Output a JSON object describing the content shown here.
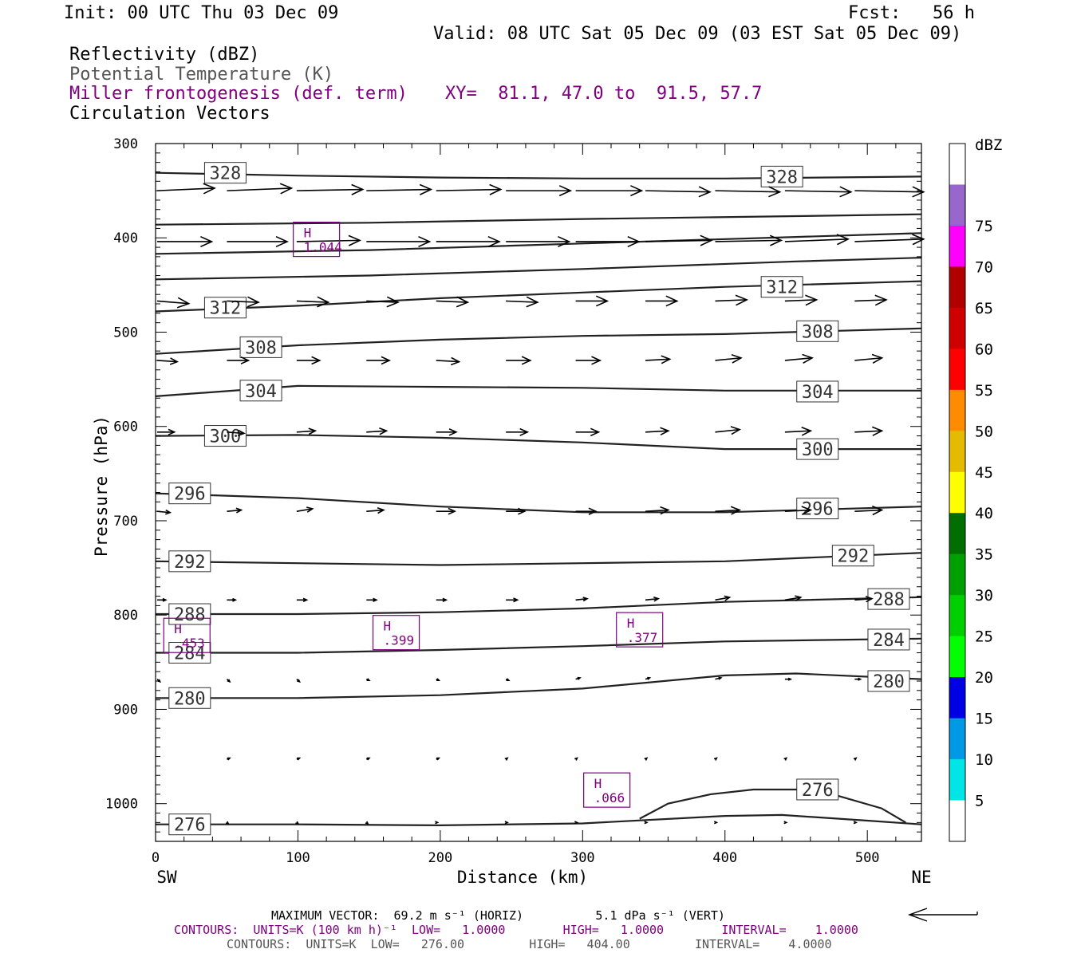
{
  "header": {
    "init": "Init: 00 UTC Thu 03 Dec 09",
    "fcst": "Fcst:   56 h",
    "valid": "Valid: 08 UTC Sat 05 Dec 09 (03 EST Sat 05 Dec 09)"
  },
  "fields": {
    "reflectivity": "Reflectivity (dBZ)",
    "theta": "Potential Temperature (K)",
    "frontogenesis": "Miller frontogenesis (def. term)",
    "xy": "XY=  81.1, 47.0 to  91.5, 57.7",
    "vectors": "Circulation Vectors"
  },
  "footer": {
    "max_vector": "MAXIMUM VECTOR:  69.2 m s⁻¹ (HORIZ)          5.1 dPa s⁻¹ (VERT)",
    "contours1": "CONTOURS:  UNITS=K (100 km h)⁻¹  LOW=   1.0000        HIGH=   1.0000        INTERVAL=    1.0000",
    "contours2": "CONTOURS:  UNITS=K  LOW=   276.00         HIGH=   404.00         INTERVAL=    4.0000"
  },
  "colors": {
    "contour": "#222222",
    "purple": "#800080",
    "background": "#ffffff"
  },
  "chart_data": {
    "type": "cross-section",
    "xlabel": "Distance (km)",
    "ylabel": "Pressure (hPa)",
    "x_left_label": "SW",
    "x_right_label": "NE",
    "xlim": [
      0,
      538
    ],
    "ylim": [
      300,
      1040
    ],
    "x_ticks": [
      0,
      100,
      200,
      300,
      400,
      500
    ],
    "y_ticks": [
      300,
      400,
      500,
      600,
      700,
      800,
      900,
      1000
    ],
    "theta_contours": [
      {
        "label": "328",
        "points": [
          [
            0,
            331
          ],
          [
            100,
            334
          ],
          [
            200,
            336
          ],
          [
            300,
            337
          ],
          [
            400,
            337
          ],
          [
            538,
            335
          ]
        ],
        "label_at": [
          [
            49,
            331
          ],
          [
            440,
            335
          ]
        ]
      },
      {
        "label": "",
        "points": [
          [
            0,
            386
          ],
          [
            150,
            384
          ],
          [
            300,
            380
          ],
          [
            450,
            377
          ],
          [
            538,
            375
          ]
        ],
        "label_at": []
      },
      {
        "label": "",
        "points": [
          [
            0,
            417
          ],
          [
            150,
            413
          ],
          [
            300,
            406
          ],
          [
            450,
            399
          ],
          [
            538,
            395
          ]
        ],
        "label_at": []
      },
      {
        "label": "",
        "points": [
          [
            0,
            444
          ],
          [
            150,
            440
          ],
          [
            300,
            433
          ],
          [
            450,
            425
          ],
          [
            538,
            421
          ]
        ],
        "label_at": []
      },
      {
        "label": "312",
        "points": [
          [
            0,
            478
          ],
          [
            100,
            472
          ],
          [
            200,
            464
          ],
          [
            300,
            458
          ],
          [
            400,
            452
          ],
          [
            538,
            446
          ]
        ],
        "label_at": [
          [
            49,
            474
          ],
          [
            440,
            452
          ]
        ]
      },
      {
        "label": "308",
        "points": [
          [
            0,
            523
          ],
          [
            100,
            514
          ],
          [
            200,
            508
          ],
          [
            300,
            504
          ],
          [
            400,
            502
          ],
          [
            538,
            496
          ]
        ],
        "label_at": [
          [
            74,
            516
          ],
          [
            465,
            499
          ]
        ]
      },
      {
        "label": "304",
        "points": [
          [
            0,
            568
          ],
          [
            100,
            557
          ],
          [
            200,
            558
          ],
          [
            300,
            559
          ],
          [
            400,
            562
          ],
          [
            538,
            562
          ]
        ],
        "label_at": [
          [
            74,
            562
          ],
          [
            465,
            563
          ]
        ]
      },
      {
        "label": "300",
        "points": [
          [
            0,
            610
          ],
          [
            100,
            609
          ],
          [
            200,
            612
          ],
          [
            300,
            617
          ],
          [
            400,
            624
          ],
          [
            538,
            624
          ]
        ],
        "label_at": [
          [
            49,
            610
          ],
          [
            465,
            624
          ]
        ]
      },
      {
        "label": "296",
        "points": [
          [
            0,
            671
          ],
          [
            100,
            676
          ],
          [
            200,
            685
          ],
          [
            300,
            691
          ],
          [
            400,
            691
          ],
          [
            538,
            685
          ]
        ],
        "label_at": [
          [
            24,
            671
          ],
          [
            465,
            687
          ]
        ]
      },
      {
        "label": "292",
        "points": [
          [
            0,
            743
          ],
          [
            100,
            745
          ],
          [
            200,
            747
          ],
          [
            300,
            745
          ],
          [
            400,
            743
          ],
          [
            538,
            734
          ]
        ],
        "label_at": [
          [
            24,
            743
          ],
          [
            490,
            737
          ]
        ]
      },
      {
        "label": "288",
        "points": [
          [
            0,
            799
          ],
          [
            100,
            799
          ],
          [
            200,
            797
          ],
          [
            300,
            793
          ],
          [
            400,
            786
          ],
          [
            538,
            781
          ]
        ],
        "label_at": [
          [
            24,
            799
          ],
          [
            515,
            783
          ]
        ]
      },
      {
        "label": "284",
        "points": [
          [
            0,
            840
          ],
          [
            100,
            840
          ],
          [
            200,
            837
          ],
          [
            300,
            833
          ],
          [
            400,
            828
          ],
          [
            538,
            825
          ]
        ],
        "label_at": [
          [
            24,
            840
          ],
          [
            515,
            826
          ]
        ]
      },
      {
        "label": "280",
        "points": [
          [
            0,
            888
          ],
          [
            100,
            888
          ],
          [
            200,
            885
          ],
          [
            300,
            878
          ],
          [
            400,
            864
          ],
          [
            450,
            862
          ],
          [
            538,
            868
          ]
        ],
        "label_at": [
          [
            24,
            888
          ],
          [
            515,
            870
          ]
        ]
      },
      {
        "label": "276",
        "points": [
          [
            340,
            1016
          ],
          [
            360,
            1000
          ],
          [
            390,
            990
          ],
          [
            420,
            985
          ],
          [
            450,
            985
          ],
          [
            480,
            992
          ],
          [
            510,
            1005
          ],
          [
            527,
            1020
          ]
        ],
        "label_at": [
          [
            465,
            985
          ]
        ]
      },
      {
        "label": "276",
        "points": [
          [
            0,
            1022
          ],
          [
            100,
            1022
          ],
          [
            200,
            1023
          ],
          [
            300,
            1021
          ],
          [
            400,
            1013
          ],
          [
            440,
            1012
          ],
          [
            500,
            1018
          ],
          [
            538,
            1022
          ]
        ],
        "label_at": [
          [
            24,
            1022
          ]
        ]
      }
    ],
    "highs": [
      {
        "label": "H",
        "value": "1.044",
        "x": 113,
        "p": 402
      },
      {
        "label": "H",
        "value": ".453",
        "x": 22,
        "p": 822
      },
      {
        "label": "H",
        "value": ".399",
        "x": 169,
        "p": 819
      },
      {
        "label": "H",
        "value": ".377",
        "x": 340,
        "p": 816
      },
      {
        "label": "H",
        "value": ".066",
        "x": 317,
        "p": 986
      }
    ],
    "vectors": [
      {
        "p": 350,
        "x": [
          0,
          49,
          98,
          147,
          196,
          245,
          294,
          343,
          392,
          441,
          490
        ],
        "u": [
          40,
          45,
          46,
          45,
          45,
          45,
          46,
          45,
          45,
          46,
          48
        ],
        "w": [
          -2,
          -2,
          -1,
          -1,
          -1,
          0,
          0,
          1,
          1,
          1,
          1
        ]
      },
      {
        "p": 404,
        "x": [
          0,
          49,
          98,
          147,
          196,
          245,
          294,
          343,
          392,
          441,
          490
        ],
        "u": [
          38,
          42,
          44,
          44,
          44,
          44,
          44,
          46,
          46,
          44,
          48
        ],
        "w": [
          0,
          0,
          -1,
          0,
          0,
          0,
          0,
          -1,
          -1,
          -2,
          -2
        ]
      },
      {
        "p": 467,
        "x": [
          0,
          49,
          98,
          147,
          196,
          245,
          294,
          343,
          392,
          441,
          490
        ],
        "u": [
          22,
          22,
          22,
          22,
          22,
          22,
          22,
          22,
          22,
          22,
          22
        ],
        "w": [
          2,
          1,
          1,
          1,
          1,
          1,
          0,
          0,
          -1,
          -1,
          -1
        ]
      },
      {
        "p": 530,
        "x": [
          0,
          49,
          98,
          147,
          196,
          245,
          294,
          343,
          392,
          441,
          490
        ],
        "u": [
          14,
          15,
          16,
          16,
          16,
          17,
          17,
          17,
          18,
          19,
          19
        ],
        "w": [
          1,
          0,
          0,
          0,
          1,
          0,
          0,
          -1,
          -2,
          -2,
          -2
        ]
      },
      {
        "p": 606,
        "x": [
          0,
          49,
          98,
          147,
          196,
          245,
          294,
          343,
          392,
          441,
          490
        ],
        "u": [
          12,
          12,
          13,
          14,
          14,
          15,
          16,
          16,
          17,
          18,
          19
        ],
        "w": [
          0,
          1,
          -1,
          -1,
          0,
          0,
          0,
          -1,
          -2,
          -1,
          -1
        ]
      },
      {
        "p": 690,
        "x": [
          0,
          49,
          98,
          147,
          196,
          245,
          294,
          343,
          392,
          441,
          490
        ],
        "u": [
          9,
          10,
          11,
          12,
          13,
          13,
          14,
          16,
          17,
          18,
          19
        ],
        "w": [
          1,
          -1,
          -2,
          -1,
          0,
          0,
          0,
          -1,
          -1,
          -1,
          -1
        ]
      },
      {
        "p": 784,
        "x": [
          0,
          49,
          98,
          147,
          196,
          245,
          294,
          343,
          392,
          441,
          490
        ],
        "u": [
          6,
          6,
          7,
          7,
          7,
          8,
          8,
          9,
          10,
          11,
          12
        ],
        "w": [
          0,
          0,
          0,
          0,
          0,
          0,
          -1,
          -1,
          -2,
          -2,
          -1
        ]
      },
      {
        "p": 868,
        "x": [
          0,
          49,
          98,
          147,
          196,
          245,
          294,
          343,
          392,
          441,
          490
        ],
        "u": [
          2,
          2,
          2,
          2,
          2,
          2,
          3,
          3,
          4,
          4,
          4
        ],
        "w": [
          2,
          2,
          2,
          1,
          1,
          1,
          -1,
          -1,
          -1,
          0,
          0
        ]
      },
      {
        "p": 953,
        "x": [
          49,
          98,
          147,
          196,
          245,
          294,
          343,
          392,
          441,
          490
        ],
        "u": [
          2,
          2,
          2,
          2,
          1,
          1,
          1,
          1,
          1,
          1
        ],
        "w": [
          -1,
          -1,
          -1,
          -1,
          -1,
          -1,
          -1,
          -1,
          -1,
          -1
        ]
      },
      {
        "p": 1020,
        "x": [
          49,
          98,
          147,
          196,
          245,
          294,
          343,
          392,
          441,
          490
        ],
        "u": [
          1,
          1,
          1,
          1,
          1,
          1,
          1,
          1,
          1,
          1
        ],
        "w": [
          1,
          1,
          1,
          0,
          0,
          0,
          0,
          0,
          0,
          0
        ]
      }
    ],
    "reflectivity_colorbar": {
      "unit": "dBZ",
      "levels": [
        5,
        10,
        15,
        20,
        25,
        30,
        35,
        40,
        45,
        50,
        55,
        60,
        65,
        70,
        75
      ],
      "colors": [
        "#ffffff",
        "#00e5e5",
        "#0099e5",
        "#0000e5",
        "#00ff00",
        "#00d000",
        "#00a000",
        "#006e00",
        "#ffff00",
        "#e5bb00",
        "#ff8c00",
        "#ff0000",
        "#d00000",
        "#b00000",
        "#ff00ff",
        "#9966cc",
        "#ffffff"
      ]
    }
  }
}
